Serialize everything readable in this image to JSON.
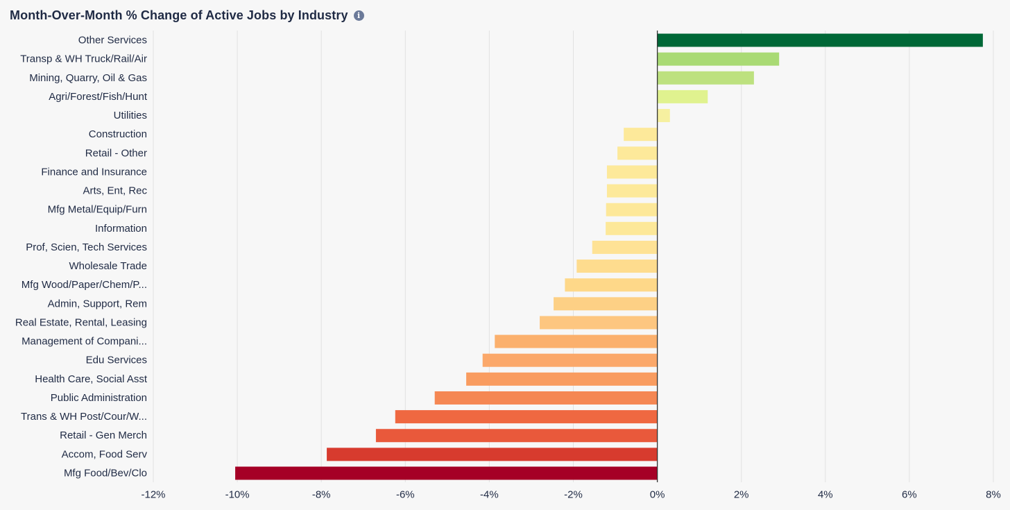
{
  "header": {
    "title": "Month-Over-Month % Change of Active Jobs by Industry",
    "info_icon": "info-icon"
  },
  "colors": {
    "text": "#1f2a44",
    "grid": "#e2e2e2",
    "zero_line": "#333333"
  },
  "chart_data": {
    "type": "bar",
    "orientation": "horizontal",
    "title": "Month-Over-Month % Change of Active Jobs by Industry",
    "xlabel": "",
    "ylabel": "",
    "unit": "%",
    "xlim": [
      -12,
      8
    ],
    "x_ticks": [
      -12,
      -10,
      -8,
      -6,
      -4,
      -2,
      0,
      2,
      4,
      6,
      8
    ],
    "grid": "vertical",
    "categories": [
      "Other Services",
      "Transp & WH Truck/Rail/Air",
      "Mining, Quarry, Oil & Gas",
      "Agri/Forest/Fish/Hunt",
      "Utilities",
      "Construction",
      "Retail - Other",
      "Finance and Insurance",
      "Arts, Ent, Rec",
      "Mfg Metal/Equip/Furn",
      "Information",
      "Prof, Scien, Tech Services",
      "Wholesale Trade",
      "Mfg Wood/Paper/Chem/P...",
      "Admin, Support, Rem",
      "Real Estate, Rental, Leasing",
      "Management of Compani...",
      "Edu Services",
      "Health Care, Social Asst",
      "Public Administration",
      "Trans & WH Post/Cour/W...",
      "Retail - Gen Merch",
      "Accom, Food Serv",
      "Mfg Food/Bev/Clo"
    ],
    "values": [
      7.75,
      2.9,
      2.3,
      1.2,
      0.3,
      -0.8,
      -0.95,
      -1.2,
      -1.2,
      -1.22,
      -1.23,
      -1.55,
      -1.92,
      -2.2,
      -2.47,
      -2.8,
      -3.87,
      -4.16,
      -4.55,
      -5.3,
      -6.24,
      -6.7,
      -7.87,
      -10.05
    ],
    "colors": [
      "#006837",
      "#a9da74",
      "#bde17f",
      "#e0f28f",
      "#f6f0a0",
      "#fde99a",
      "#fde99a",
      "#fde99a",
      "#fde99a",
      "#fde899",
      "#fde899",
      "#fee295",
      "#fedc8e",
      "#fed889",
      "#fdd085",
      "#fdc680",
      "#fbb06d",
      "#fba86a",
      "#f99c60",
      "#f58753",
      "#ef6841",
      "#e9593b",
      "#d73b2e",
      "#a50026"
    ]
  }
}
